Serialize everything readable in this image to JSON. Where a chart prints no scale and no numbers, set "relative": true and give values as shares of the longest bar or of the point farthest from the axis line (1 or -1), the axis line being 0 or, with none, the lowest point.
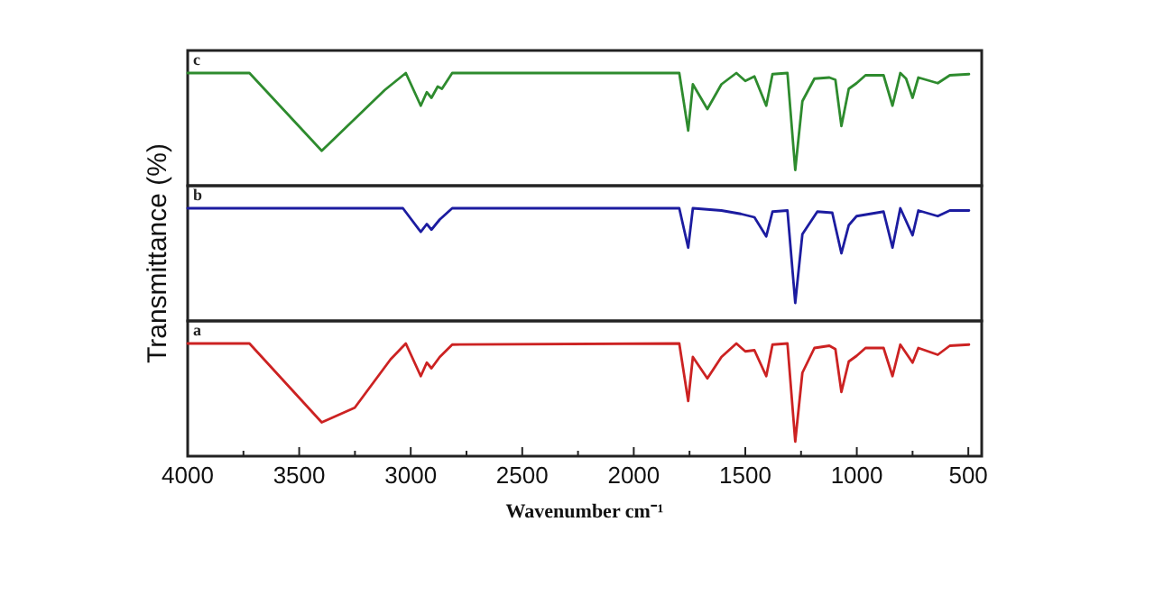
{
  "chart_data": [
    {
      "type": "line",
      "relative": true,
      "color": "#2e8b2e",
      "xlim": [
        4000,
        440
      ],
      "tick_labels": false,
      "annotations": [
        "c"
      ],
      "x": [
        4000,
        3723,
        3399,
        3116,
        3022,
        2955,
        2928,
        2907,
        2879,
        2860,
        2814,
        1796,
        1756,
        1735,
        1670,
        1607,
        1540,
        1500,
        1459,
        1406,
        1378,
        1311,
        1276,
        1244,
        1190,
        1123,
        1096,
        1069,
        1036,
        1001,
        961,
        880,
        840,
        805,
        779,
        750,
        724,
        637,
        583,
        497
      ],
      "values": [
        1.0,
        1.0,
        0.31,
        0.85,
        1.0,
        0.71,
        0.83,
        0.78,
        0.88,
        0.86,
        1.0,
        1.0,
        0.49,
        0.9,
        0.68,
        0.9,
        1.0,
        0.93,
        0.97,
        0.71,
        0.99,
        1.0,
        0.14,
        0.75,
        0.95,
        0.96,
        0.94,
        0.53,
        0.86,
        0.91,
        0.98,
        0.98,
        0.71,
        1.0,
        0.95,
        0.78,
        0.96,
        0.91,
        0.98,
        0.99
      ]
    },
    {
      "type": "line",
      "relative": true,
      "color": "#1c1ca0",
      "xlim": [
        4000,
        440
      ],
      "tick_labels": false,
      "ylabel": "Transmittance (%)",
      "annotations": [
        "b"
      ],
      "x": [
        4000,
        3035,
        2955,
        2928,
        2907,
        2870,
        2814,
        1796,
        1756,
        1735,
        1607,
        1520,
        1459,
        1406,
        1378,
        1311,
        1276,
        1244,
        1177,
        1110,
        1069,
        1036,
        1001,
        880,
        840,
        805,
        750,
        724,
        637,
        583,
        497
      ],
      "values": [
        1.0,
        1.0,
        0.79,
        0.86,
        0.81,
        0.9,
        1.0,
        1.0,
        0.65,
        1.0,
        0.98,
        0.95,
        0.92,
        0.75,
        0.97,
        0.98,
        0.16,
        0.77,
        0.97,
        0.96,
        0.6,
        0.85,
        0.93,
        0.97,
        0.65,
        1.0,
        0.76,
        0.98,
        0.93,
        0.98,
        0.98
      ]
    },
    {
      "type": "line",
      "relative": true,
      "color": "#cc2222",
      "xlim": [
        4000,
        440
      ],
      "tick_labels": "x",
      "xlabel": "Wavenumber cm⁻¹",
      "annotations": [
        "a"
      ],
      "xticks": [
        4000,
        {
          "value": 3750,
          "label": null
        },
        3500,
        {
          "value": 3250,
          "label": null
        },
        3000,
        {
          "value": 2750,
          "label": null
        },
        2500,
        {
          "value": 2250,
          "label": null
        },
        2000,
        {
          "value": 1750,
          "label": null
        },
        1500,
        {
          "value": 1250,
          "label": null
        },
        1000,
        {
          "value": 750,
          "label": null
        },
        500
      ],
      "x": [
        4000,
        3723,
        3399,
        3251,
        3090,
        3022,
        2955,
        2928,
        2907,
        2870,
        2814,
        1796,
        1756,
        1735,
        1670,
        1607,
        1540,
        1500,
        1459,
        1406,
        1378,
        1311,
        1276,
        1244,
        1190,
        1123,
        1096,
        1069,
        1036,
        1001,
        961,
        880,
        840,
        805,
        750,
        724,
        637,
        583,
        497
      ],
      "values": [
        1.0,
        1.0,
        0.3,
        0.43,
        0.86,
        1.0,
        0.71,
        0.83,
        0.78,
        0.88,
        0.99,
        1.0,
        0.49,
        0.88,
        0.69,
        0.88,
        1.0,
        0.93,
        0.94,
        0.71,
        0.99,
        1.0,
        0.13,
        0.74,
        0.96,
        0.98,
        0.95,
        0.57,
        0.84,
        0.89,
        0.96,
        0.96,
        0.71,
        0.99,
        0.83,
        0.96,
        0.9,
        0.98,
        0.99
      ]
    }
  ]
}
